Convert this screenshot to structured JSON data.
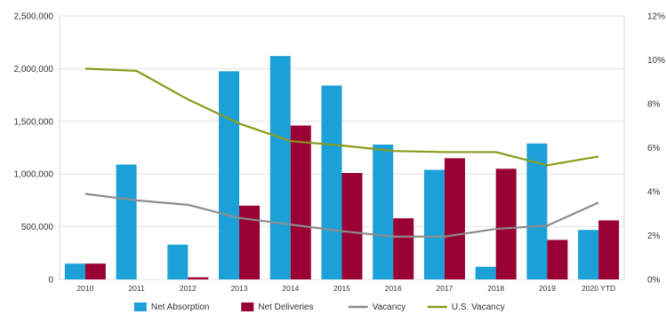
{
  "chart_data": {
    "type": "bar",
    "categories": [
      "2010",
      "2011",
      "2012",
      "2013",
      "2014",
      "2015",
      "2016",
      "2017",
      "2018",
      "2019",
      "2020 YTD"
    ],
    "series": [
      {
        "name": "Net Absorption",
        "kind": "bar",
        "axis": "left",
        "color": "#1ca0d8",
        "values": [
          150000,
          1090000,
          330000,
          1975000,
          2120000,
          1840000,
          1280000,
          1040000,
          120000,
          1290000,
          470000
        ]
      },
      {
        "name": "Net Deliveries",
        "kind": "bar",
        "axis": "left",
        "color": "#990033",
        "values": [
          150000,
          0,
          20000,
          700000,
          1460000,
          1010000,
          580000,
          1150000,
          1050000,
          375000,
          560000
        ]
      },
      {
        "name": "Vacancy",
        "kind": "line",
        "axis": "right",
        "color": "#8c8c8c",
        "values": [
          3.9,
          3.6,
          3.4,
          2.8,
          2.5,
          2.2,
          1.95,
          1.95,
          2.3,
          2.45,
          3.5
        ]
      },
      {
        "name": "U.S. Vacancy",
        "kind": "line",
        "axis": "right",
        "color": "#8a9a1a",
        "values": [
          9.6,
          9.5,
          8.2,
          7.1,
          6.3,
          6.1,
          5.85,
          5.8,
          5.8,
          5.2,
          5.6
        ]
      }
    ],
    "y_left": {
      "min": 0,
      "max": 2500000,
      "ticks": [
        "0",
        "500,000",
        "1,000,000",
        "1,500,000",
        "2,000,000",
        "2,500,000"
      ]
    },
    "y_right": {
      "min": 0,
      "max": 12,
      "ticks": [
        "0%",
        "2%",
        "4%",
        "6%",
        "8%",
        "10%",
        "12%"
      ]
    },
    "grid": true,
    "legend_position": "bottom"
  }
}
